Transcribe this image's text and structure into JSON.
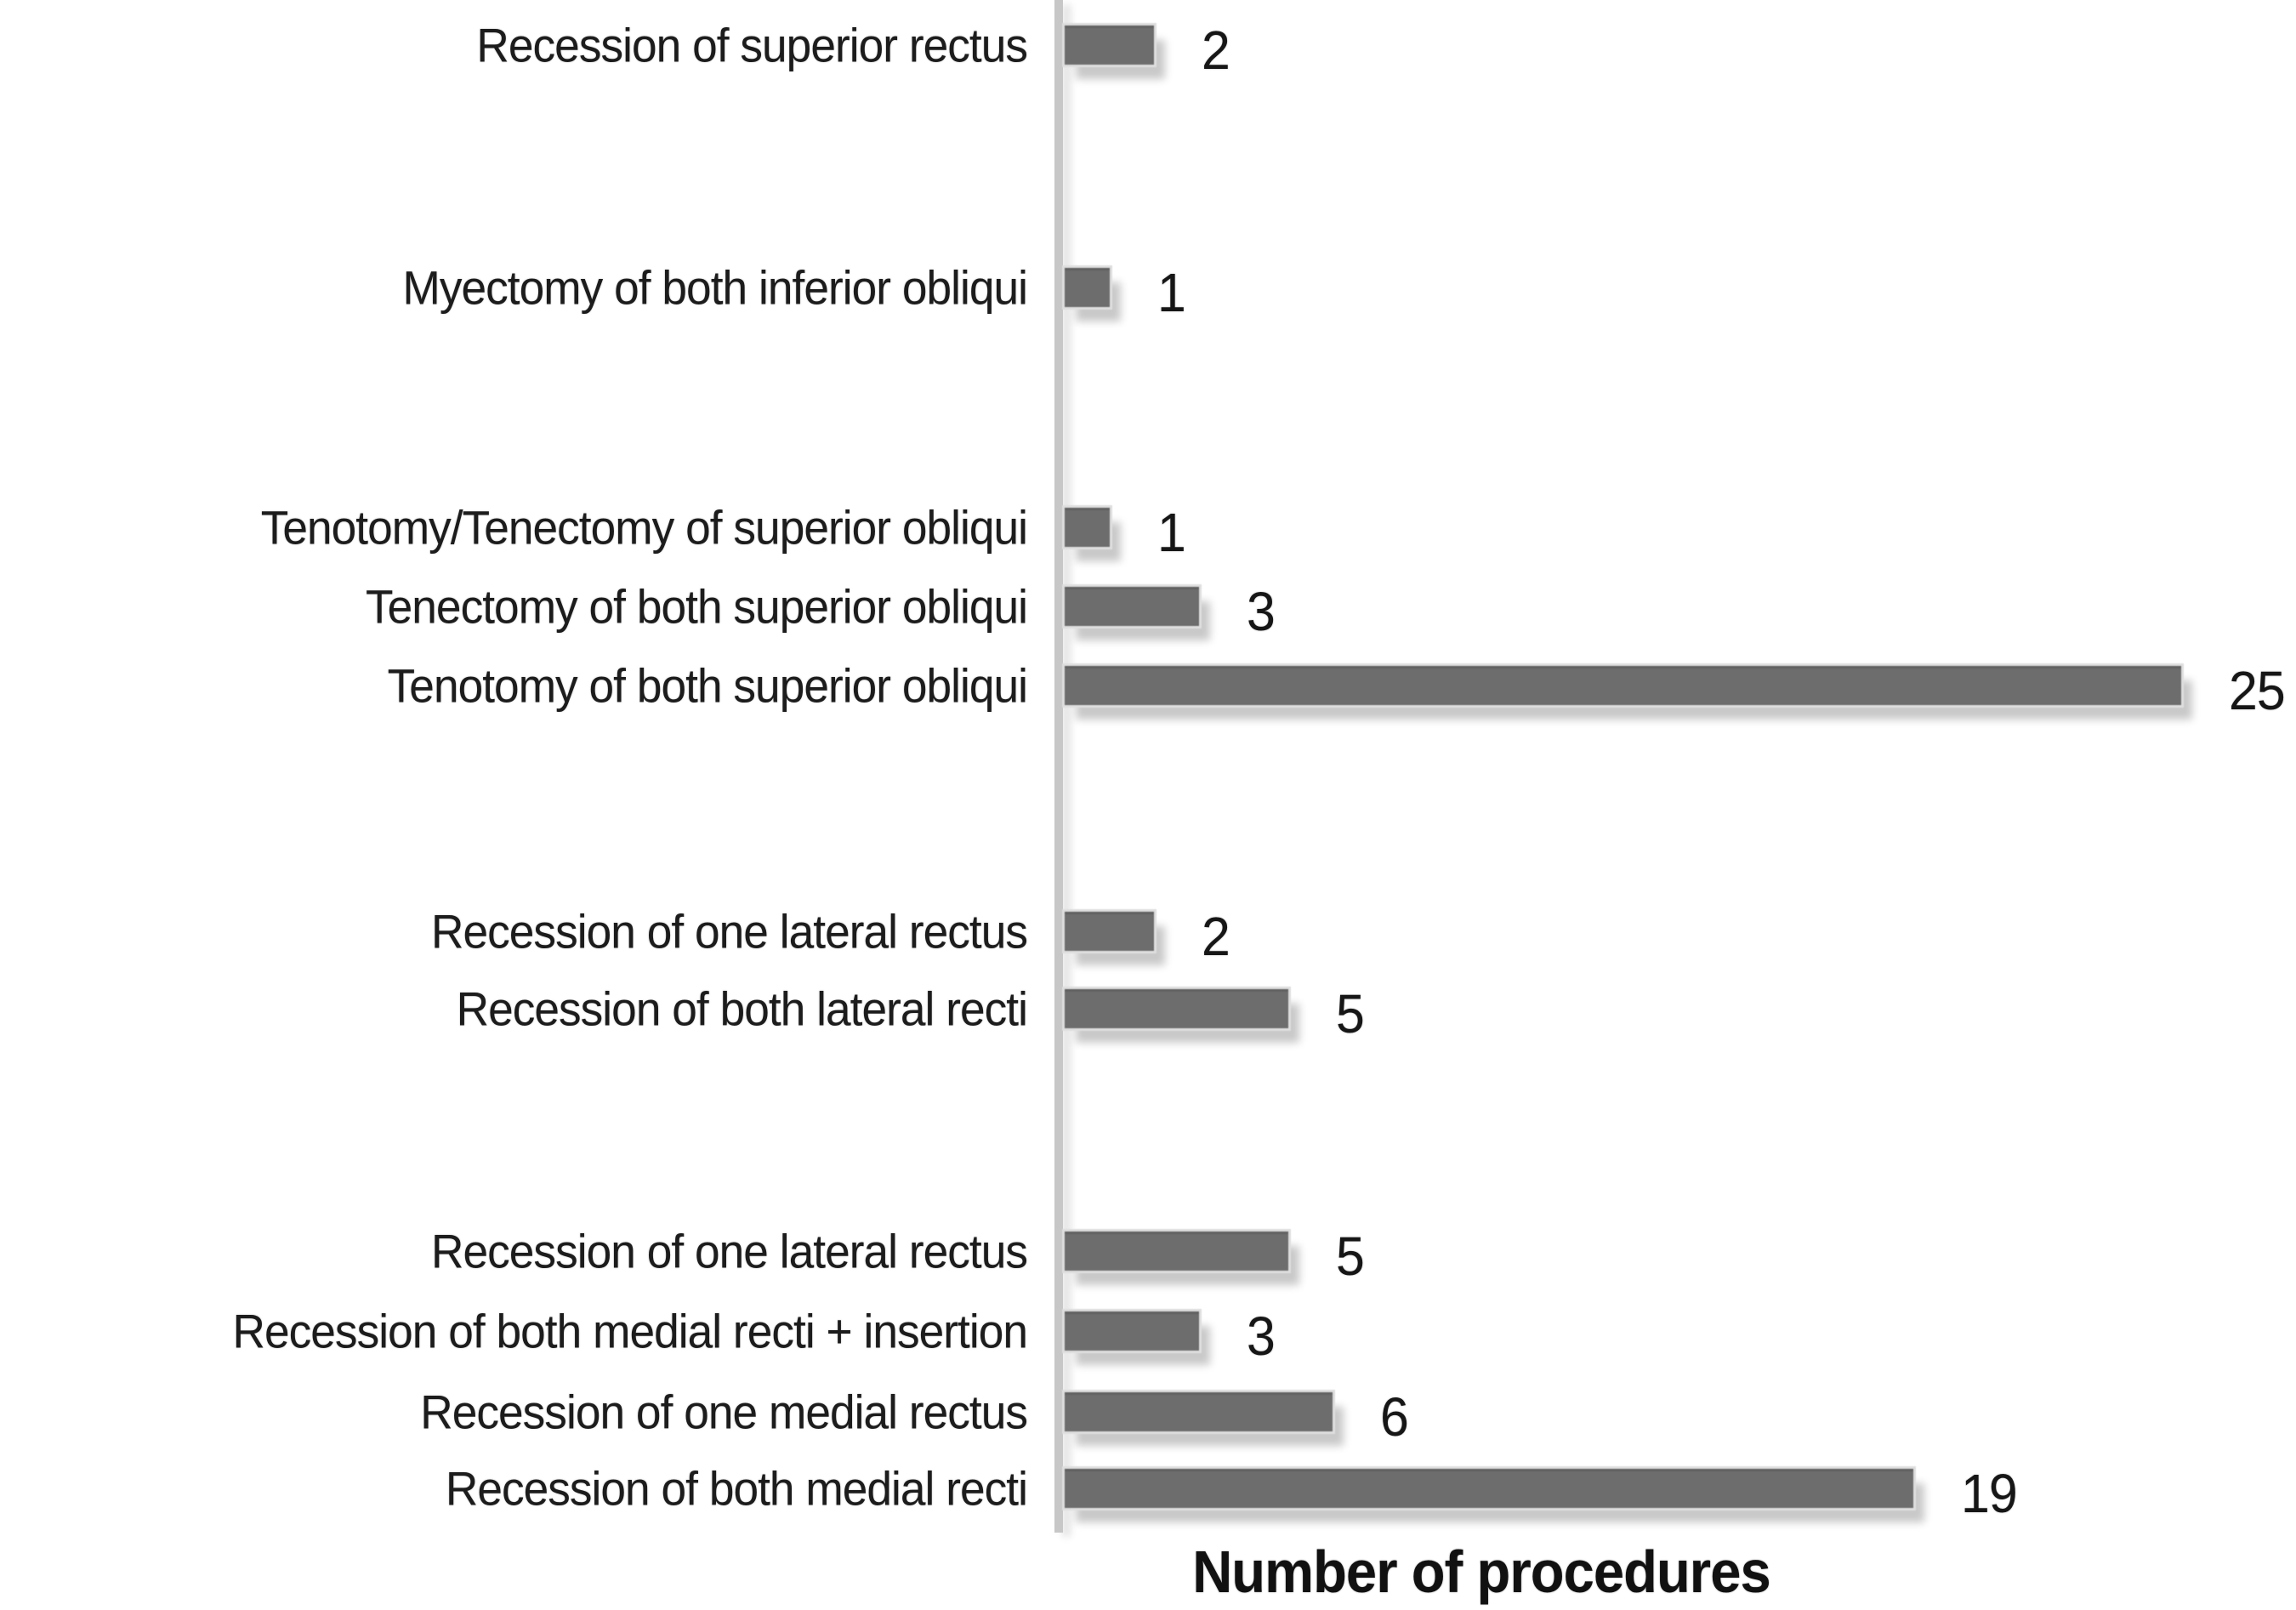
{
  "chart_data": {
    "type": "bar",
    "orientation": "horizontal",
    "title": "",
    "xlabel": "Number of procedures",
    "ylabel": "",
    "value_axis_range": [
      0,
      25
    ],
    "grid": false,
    "legend": false,
    "data_labels_shown": true,
    "bar_color": "#6d6d6d",
    "axis_line_color": "#c7c7c7",
    "text_color": "#1c1c1c",
    "background_color": "#ffffff",
    "categories": [
      "Recession of superior rectus",
      "Myectomy of both inferior obliqui",
      "Tenotomy/Tenectomy of superior obliqui",
      "Tenectomy of both superior obliqui",
      "Tenotomy of both superior obliqui",
      "Recession of one lateral rectus",
      "Recession of both lateral recti",
      "Recession of one lateral rectus",
      "Recession of both medial recti + insertion",
      "Recession of one medial rectus",
      "Recession of both medial recti"
    ],
    "values": [
      2,
      1,
      1,
      3,
      25,
      2,
      5,
      5,
      3,
      6,
      19
    ]
  }
}
